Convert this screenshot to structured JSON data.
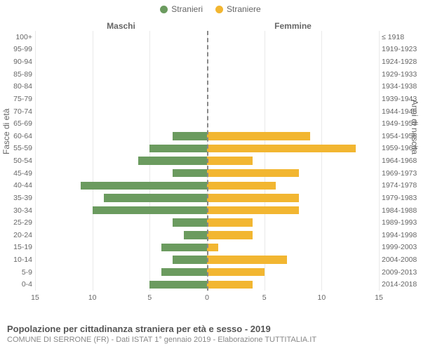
{
  "chart": {
    "type": "population-pyramid",
    "legend": [
      {
        "label": "Stranieri",
        "color": "#6b9b5f"
      },
      {
        "label": "Straniere",
        "color": "#f2b631"
      }
    ],
    "header_left": "Maschi",
    "header_right": "Femmine",
    "yaxis_left_label": "Fasce di età",
    "yaxis_right_label": "Anni di nascita",
    "xmax": 15,
    "xticks": [
      15,
      10,
      5,
      0,
      5,
      10,
      15
    ],
    "male_color": "#6b9b5f",
    "female_color": "#f2b631",
    "grid_color": "#e9e9e9",
    "center_line_color": "#888888",
    "background_color": "#ffffff",
    "label_fontsize": 10.5,
    "axis_fontsize": 12,
    "bar_height_pct": 65,
    "rows": [
      {
        "age": "100+",
        "birth": "≤ 1918",
        "m": 0,
        "f": 0
      },
      {
        "age": "95-99",
        "birth": "1919-1923",
        "m": 0,
        "f": 0
      },
      {
        "age": "90-94",
        "birth": "1924-1928",
        "m": 0,
        "f": 0
      },
      {
        "age": "85-89",
        "birth": "1929-1933",
        "m": 0,
        "f": 0
      },
      {
        "age": "80-84",
        "birth": "1934-1938",
        "m": 0,
        "f": 0
      },
      {
        "age": "75-79",
        "birth": "1939-1943",
        "m": 0,
        "f": 0
      },
      {
        "age": "70-74",
        "birth": "1944-1948",
        "m": 0,
        "f": 0
      },
      {
        "age": "65-69",
        "birth": "1949-1953",
        "m": 0,
        "f": 0
      },
      {
        "age": "60-64",
        "birth": "1954-1958",
        "m": 3,
        "f": 9
      },
      {
        "age": "55-59",
        "birth": "1959-1963",
        "m": 5,
        "f": 13
      },
      {
        "age": "50-54",
        "birth": "1964-1968",
        "m": 6,
        "f": 4
      },
      {
        "age": "45-49",
        "birth": "1969-1973",
        "m": 3,
        "f": 8
      },
      {
        "age": "40-44",
        "birth": "1974-1978",
        "m": 11,
        "f": 6
      },
      {
        "age": "35-39",
        "birth": "1979-1983",
        "m": 9,
        "f": 8
      },
      {
        "age": "30-34",
        "birth": "1984-1988",
        "m": 10,
        "f": 8
      },
      {
        "age": "25-29",
        "birth": "1989-1993",
        "m": 3,
        "f": 4
      },
      {
        "age": "20-24",
        "birth": "1994-1998",
        "m": 2,
        "f": 4
      },
      {
        "age": "15-19",
        "birth": "1999-2003",
        "m": 4,
        "f": 1
      },
      {
        "age": "10-14",
        "birth": "2004-2008",
        "m": 3,
        "f": 7
      },
      {
        "age": "5-9",
        "birth": "2009-2013",
        "m": 4,
        "f": 5
      },
      {
        "age": "0-4",
        "birth": "2014-2018",
        "m": 5,
        "f": 4
      }
    ]
  },
  "footer": {
    "title": "Popolazione per cittadinanza straniera per età e sesso - 2019",
    "subtitle": "COMUNE DI SERRONE (FR) - Dati ISTAT 1° gennaio 2019 - Elaborazione TUTTITALIA.IT"
  }
}
